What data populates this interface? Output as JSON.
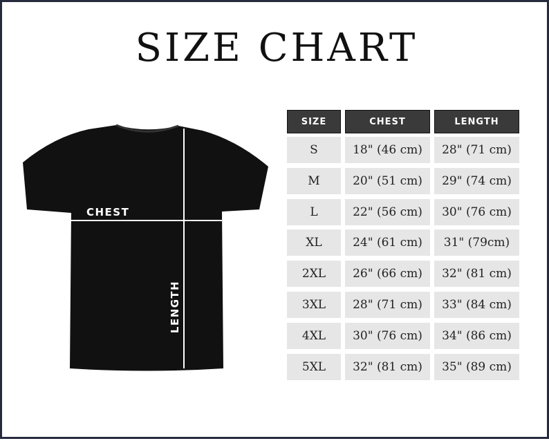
{
  "title": "SIZE CHART",
  "shirt_labels": {
    "chest": "CHEST",
    "length": "LENGTH"
  },
  "table": {
    "headers": [
      "SIZE",
      "CHEST",
      "LENGTH"
    ],
    "rows": [
      [
        "S",
        "18\" (46 cm)",
        "28\" (71 cm)"
      ],
      [
        "M",
        "20\" (51 cm)",
        "29\" (74 cm)"
      ],
      [
        "L",
        "22\" (56 cm)",
        "30\" (76 cm)"
      ],
      [
        "XL",
        "24\" (61 cm)",
        "31\" (79cm)"
      ],
      [
        "2XL",
        "26\" (66 cm)",
        "32\" (81 cm)"
      ],
      [
        "3XL",
        "28\" (71 cm)",
        "33\" (84 cm)"
      ],
      [
        "4XL",
        "30\" (76 cm)",
        "34\" (86 cm)"
      ],
      [
        "5XL",
        "32\" (81 cm)",
        "35\" (89 cm)"
      ]
    ]
  },
  "colors": {
    "frame": "#262a3d",
    "header_bg": "#3a3a3a",
    "cell_bg": "#e6e6e6",
    "shirt": "#111111"
  }
}
